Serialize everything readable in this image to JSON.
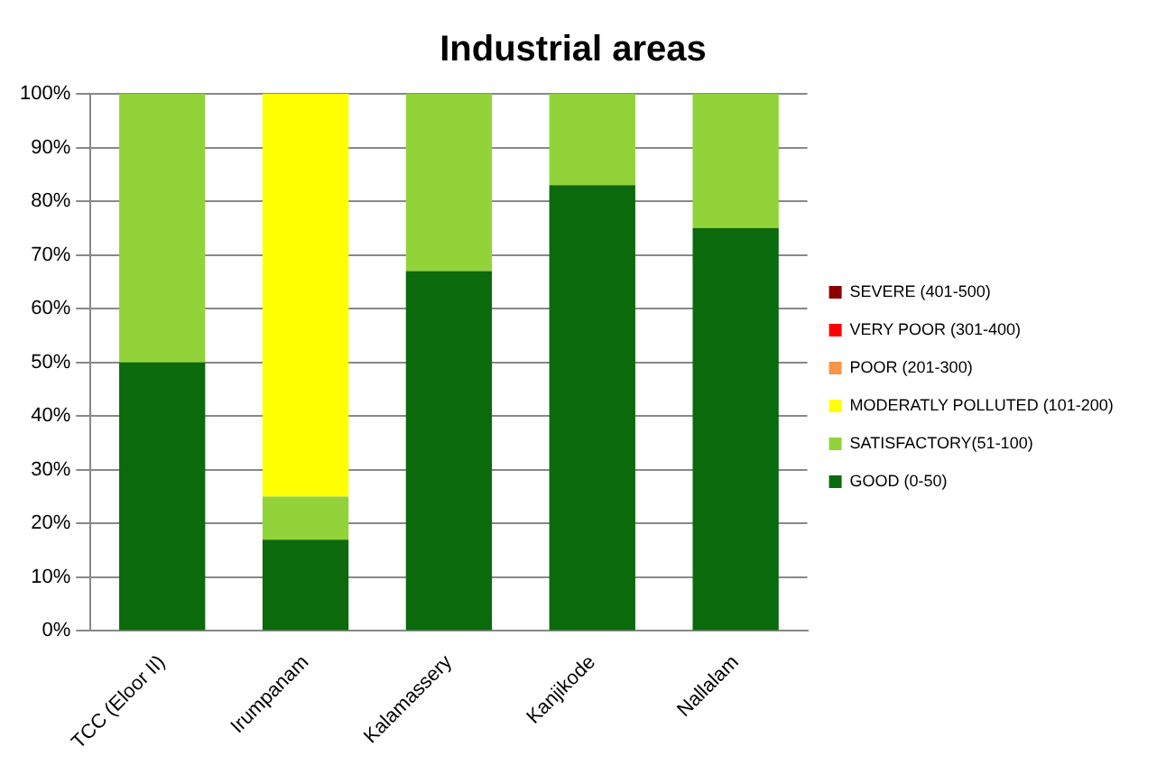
{
  "chart_data": {
    "type": "bar",
    "title": "Industrial areas",
    "stacked": true,
    "categories": [
      "TCC (Eloor II)",
      "Irumpanam",
      "Kalamassery",
      "Kanjikode",
      "Nallalam"
    ],
    "series": [
      {
        "name": "GOOD (0-50)",
        "color": "#0b6a0b",
        "values": [
          50,
          17,
          67,
          83,
          75
        ]
      },
      {
        "name": "SATISFACTORY(51-100)",
        "color": "#92d33a",
        "values": [
          50,
          8,
          33,
          17,
          25
        ]
      },
      {
        "name": "MODERATLY POLLUTED (101-200)",
        "color": "#ffff00",
        "values": [
          0,
          75,
          0,
          0,
          0
        ]
      },
      {
        "name": "POOR (201-300)",
        "color": "#f79646",
        "values": [
          0,
          0,
          0,
          0,
          0
        ]
      },
      {
        "name": "VERY POOR (301-400)",
        "color": "#ff0000",
        "values": [
          0,
          0,
          0,
          0,
          0
        ]
      },
      {
        "name": "SEVERE (401-500)",
        "color": "#8b0000",
        "values": [
          0,
          0,
          0,
          0,
          0
        ]
      }
    ],
    "ylim": [
      0,
      100
    ],
    "yticks": [
      {
        "value": 0,
        "label": "0%"
      },
      {
        "value": 10,
        "label": "10%"
      },
      {
        "value": 20,
        "label": "20%"
      },
      {
        "value": 30,
        "label": "30%"
      },
      {
        "value": 40,
        "label": "40%"
      },
      {
        "value": 50,
        "label": "50%"
      },
      {
        "value": 60,
        "label": "60%"
      },
      {
        "value": 70,
        "label": "70%"
      },
      {
        "value": 80,
        "label": "80%"
      },
      {
        "value": 90,
        "label": "90%"
      },
      {
        "value": 100,
        "label": "100%"
      }
    ],
    "grid": "y",
    "legend": "right"
  }
}
